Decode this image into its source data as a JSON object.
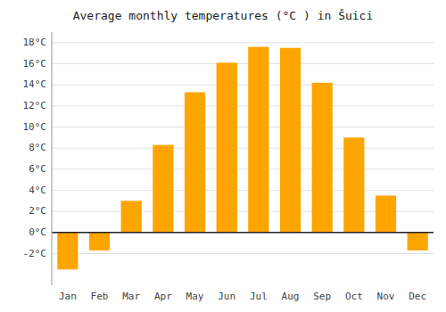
{
  "chart_data": {
    "type": "bar",
    "title": "Average monthly temperatures (°C ) in Šuici",
    "categories": [
      "Jan",
      "Feb",
      "Mar",
      "Apr",
      "May",
      "Jun",
      "Jul",
      "Aug",
      "Sep",
      "Oct",
      "Nov",
      "Dec"
    ],
    "values": [
      -3.5,
      -1.7,
      3.0,
      8.3,
      13.3,
      16.1,
      17.6,
      17.5,
      14.2,
      9.0,
      3.5,
      -1.7
    ],
    "color": "#FFA500",
    "ylim": [
      -5.0,
      19.0
    ],
    "yticks": [
      {
        "value": -2,
        "label": "-2°C"
      },
      {
        "value": 0,
        "label": "0°C"
      },
      {
        "value": 2,
        "label": "2°C"
      },
      {
        "value": 4,
        "label": "4°C"
      },
      {
        "value": 6,
        "label": "6°C"
      },
      {
        "value": 8,
        "label": "8°C"
      },
      {
        "value": 10,
        "label": "10°C"
      },
      {
        "value": 12,
        "label": "12°C"
      },
      {
        "value": 14,
        "label": "14°C"
      },
      {
        "value": 16,
        "label": "16°C"
      },
      {
        "value": 18,
        "label": "18°C"
      }
    ],
    "grid": true
  }
}
